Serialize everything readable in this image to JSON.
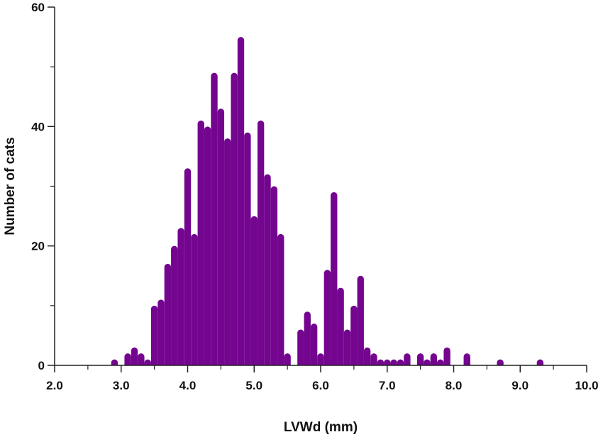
{
  "chart_data": {
    "type": "bar",
    "title": "",
    "xlabel": "LVWd (mm)",
    "ylabel": "Number of cats",
    "xlim": [
      2.0,
      10.0
    ],
    "ylim": [
      0,
      60
    ],
    "x_ticks": [
      "2.0",
      "3.0",
      "4.0",
      "5.0",
      "6.0",
      "7.0",
      "8.0",
      "9.0",
      "10.0"
    ],
    "y_ticks": [
      "0",
      "20",
      "40",
      "60"
    ],
    "bin_width_mm": 0.1,
    "color": "#73058f",
    "grid": false,
    "legend": "none",
    "x": [
      2.9,
      3.1,
      3.2,
      3.3,
      3.4,
      3.5,
      3.6,
      3.7,
      3.8,
      3.9,
      4.0,
      4.1,
      4.2,
      4.3,
      4.4,
      4.5,
      4.6,
      4.7,
      4.8,
      4.9,
      5.0,
      5.1,
      5.2,
      5.3,
      5.4,
      5.5,
      5.7,
      5.8,
      5.9,
      6.0,
      6.1,
      6.2,
      6.3,
      6.4,
      6.5,
      6.6,
      6.7,
      6.8,
      6.9,
      7.0,
      7.1,
      7.2,
      7.3,
      7.5,
      7.6,
      7.7,
      7.8,
      7.9,
      8.2,
      8.7,
      9.3
    ],
    "values": [
      1,
      2,
      3,
      2,
      1,
      10,
      11,
      17,
      20,
      23,
      33,
      22,
      41,
      40,
      49,
      43,
      38,
      49,
      55,
      39,
      25,
      41,
      32,
      30,
      22,
      2,
      6,
      9,
      7,
      2,
      16,
      29,
      13,
      6,
      10,
      15,
      3,
      2,
      1,
      1,
      1,
      1,
      2,
      2,
      1,
      2,
      1,
      3,
      2,
      1,
      1
    ]
  }
}
